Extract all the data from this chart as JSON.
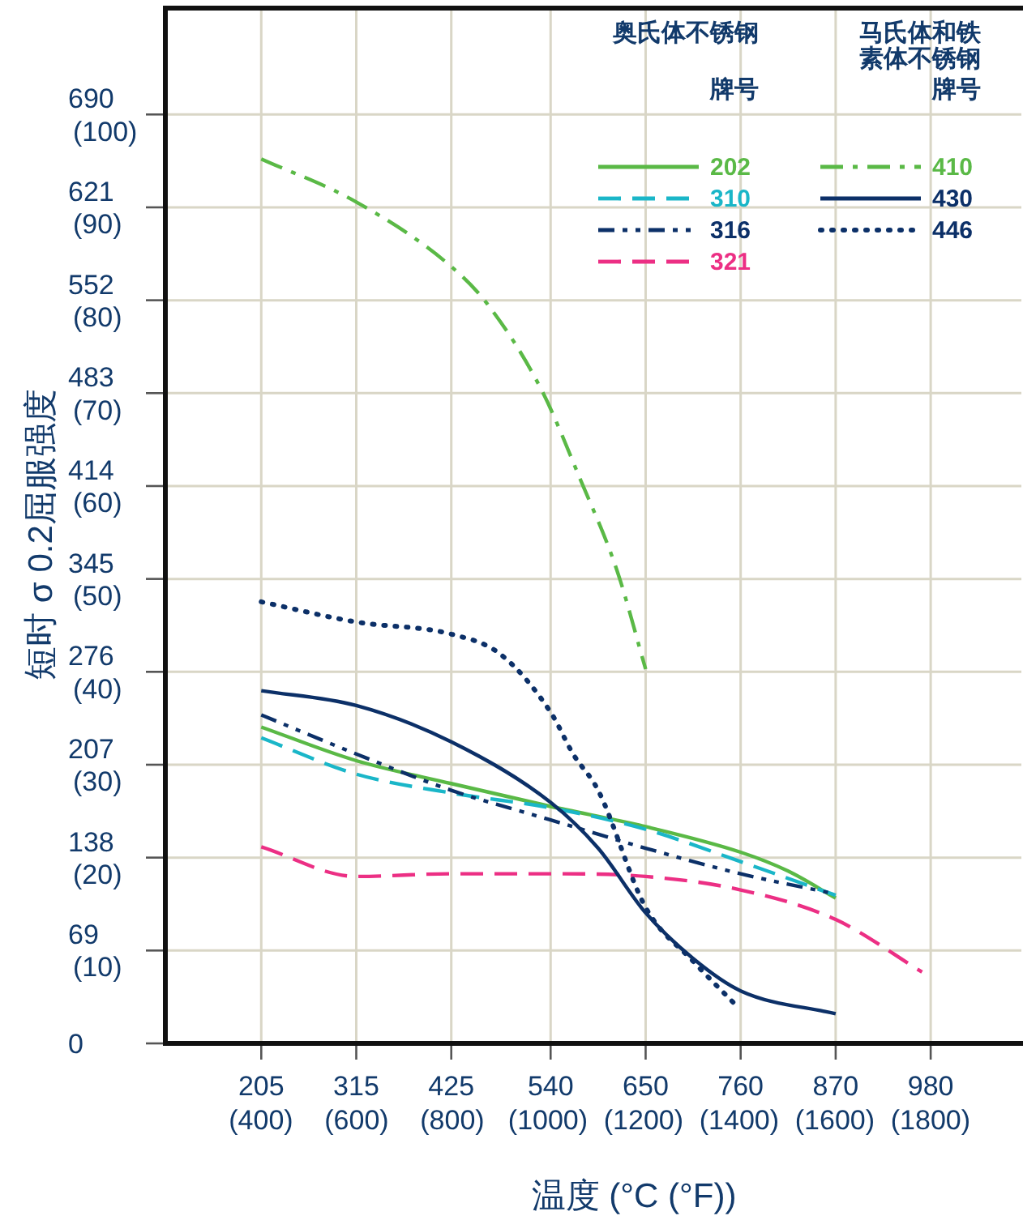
{
  "chart_data": {
    "type": "line",
    "xlabel": "温度 (°C (°F))",
    "ylabel": "短时 σ 0.2屈服强度",
    "annotations": [
      "奥氏体不锈钢",
      "牌号",
      "马氏体和铁素体不锈钢",
      "牌号"
    ],
    "xlim": [
      94,
      1085
    ],
    "ylim": [
      0,
      769
    ],
    "xticks": [
      205,
      315,
      425,
      540,
      650,
      760,
      870,
      980
    ],
    "yticks": [
      0,
      69,
      138,
      207,
      276,
      345,
      414,
      483,
      552,
      621,
      690
    ],
    "x2lim": [
      200,
      1990
    ],
    "x2ticks": [
      {
        "value": 400,
        "label": "(400)"
      },
      {
        "value": 600,
        "label": "(600)"
      },
      {
        "value": 800,
        "label": "(800)"
      },
      {
        "value": 1000,
        "label": "(1000)"
      },
      {
        "value": 1200,
        "label": "(1200)"
      },
      {
        "value": 1400,
        "label": "(1400)"
      },
      {
        "value": 1600,
        "label": "(1600)"
      },
      {
        "value": 1800,
        "label": "(1800)"
      }
    ],
    "y2lim": [
      0,
      111.5
    ],
    "y2ticks": [
      {
        "value": 10,
        "label": "(10)"
      },
      {
        "value": 20,
        "label": "(20)"
      },
      {
        "value": 30,
        "label": "(30)"
      },
      {
        "value": 40,
        "label": "(40)"
      },
      {
        "value": 50,
        "label": "(50)"
      },
      {
        "value": 60,
        "label": "(60)"
      },
      {
        "value": 70,
        "label": "(70)"
      },
      {
        "value": 80,
        "label": "(80)"
      },
      {
        "value": 90,
        "label": "(90)"
      },
      {
        "value": 100,
        "label": "(100)"
      }
    ],
    "grid": true,
    "legend": "top right",
    "series": [
      {
        "name": "202",
        "color": "#5ab946",
        "line_style": "solid",
        "x": [
          205,
          315,
          425,
          540,
          650,
          760,
          815,
          870
        ],
        "values": [
          235,
          210,
          193,
          176,
          161,
          142,
          128,
          108
        ]
      },
      {
        "name": "310",
        "color": "#1ab6c8",
        "line_style": "dashed",
        "x": [
          205,
          315,
          425,
          540,
          650,
          760,
          870
        ],
        "values": [
          227,
          200,
          186,
          175,
          159,
          135,
          110
        ]
      },
      {
        "name": "316",
        "color": "#0c3068",
        "line_style": "dashdotdot",
        "x": [
          205,
          315,
          425,
          540,
          650,
          760,
          870
        ],
        "values": [
          244,
          215,
          188,
          166,
          145,
          126,
          111
        ]
      },
      {
        "name": "321",
        "color": "#ec2f84",
        "line_style": "dashed",
        "x": [
          205,
          315,
          425,
          540,
          650,
          760,
          870,
          970
        ],
        "values": [
          146,
          124,
          126,
          126,
          124,
          114,
          92,
          53
        ]
      },
      {
        "name": "410",
        "color": "#5ab946",
        "line_style": "dashdot",
        "x": [
          205,
          315,
          425,
          467,
          529,
          575,
          617,
          650
        ],
        "values": [
          657,
          625,
          577,
          549,
          486,
          418,
          351,
          278
        ]
      },
      {
        "name": "430",
        "color": "#0c3068",
        "line_style": "solid",
        "x": [
          205,
          315,
          425,
          540,
          595,
          650,
          705,
          760,
          870
        ],
        "values": [
          262,
          251,
          224,
          179,
          145,
          97,
          63,
          39,
          22
        ]
      },
      {
        "name": "446",
        "color": "#0c3068",
        "line_style": "dotted",
        "x": [
          205,
          315,
          425,
          482,
          540,
          566,
          595,
          650,
          705,
          752
        ],
        "values": [
          328,
          313,
          304,
          289,
          246,
          215,
          188,
          101,
          61,
          30
        ]
      }
    ]
  }
}
